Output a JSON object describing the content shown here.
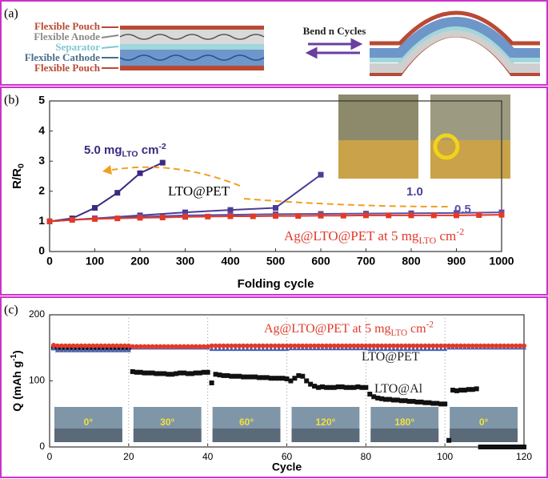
{
  "panels": [
    "(a)",
    "(b)",
    "(c)"
  ],
  "diagram": {
    "layers": [
      "Flexible Pouch",
      "Flexible Anode",
      "Separator",
      "Flexible Cathode",
      "Flexible Pouch"
    ],
    "process": "Bend n Cycles"
  },
  "chart_data": [
    {
      "type": "line",
      "xlabel": "Folding cycle",
      "ylabel": [
        {
          "text": "R/R"
        },
        {
          "text": "0",
          "sub": true
        }
      ],
      "xlim": [
        0,
        1000
      ],
      "ylim": [
        0,
        5
      ],
      "xticks": [
        0,
        100,
        200,
        300,
        400,
        500,
        600,
        700,
        800,
        900,
        1000
      ],
      "yticks": [
        0,
        1,
        2,
        3,
        4,
        5
      ],
      "annotations": [
        "LTO@PET"
      ],
      "series": [
        {
          "label": [
            {
              "text": "5.0 mg"
            },
            {
              "text": "LTO",
              "sub": true
            },
            {
              "text": " cm"
            },
            {
              "text": "-2",
              "sup": true
            }
          ],
          "color": "#3b2a80",
          "marker": "square",
          "x": [
            0,
            50,
            100,
            150,
            200,
            250
          ],
          "values": [
            1.0,
            1.1,
            1.45,
            1.95,
            2.6,
            2.95
          ]
        },
        {
          "label": [
            {
              "text": "1.0"
            }
          ],
          "color": "#4b3c96",
          "marker": "square",
          "x": [
            0,
            100,
            200,
            300,
            400,
            500,
            600
          ],
          "values": [
            1.0,
            1.1,
            1.2,
            1.3,
            1.38,
            1.45,
            2.55
          ]
        },
        {
          "label": [
            {
              "text": "0.5"
            }
          ],
          "color": "#5a4fa8",
          "marker": "square",
          "x": [
            0,
            100,
            200,
            300,
            400,
            500,
            600,
            700,
            800,
            900,
            1000
          ],
          "values": [
            1.0,
            1.1,
            1.15,
            1.2,
            1.22,
            1.24,
            1.25,
            1.26,
            1.27,
            1.28,
            1.3
          ]
        },
        {
          "label": [
            {
              "text": "Ag@LTO@PET at 5 mg"
            },
            {
              "text": "LTO",
              "sub": true
            },
            {
              "text": " cm"
            },
            {
              "text": "-2",
              "sup": true
            }
          ],
          "color": "#e03a2a",
          "marker": "square",
          "x": [
            0,
            50,
            100,
            150,
            200,
            250,
            300,
            350,
            400,
            450,
            500,
            550,
            600,
            650,
            700,
            750,
            800,
            850,
            900,
            950,
            1000
          ],
          "values": [
            1.0,
            1.05,
            1.08,
            1.1,
            1.12,
            1.13,
            1.15,
            1.16,
            1.17,
            1.17,
            1.18,
            1.18,
            1.19,
            1.19,
            1.2,
            1.2,
            1.2,
            1.2,
            1.2,
            1.21,
            1.22
          ]
        }
      ]
    },
    {
      "type": "scatter",
      "xlabel": "Cycle",
      "ylabel": [
        {
          "text": "Q (mAh g"
        },
        {
          "text": "-1",
          "sup": true
        },
        {
          "text": ")"
        }
      ],
      "xlim": [
        0,
        120
      ],
      "ylim": [
        0,
        200
      ],
      "xticks": [
        0,
        20,
        40,
        60,
        80,
        100,
        120
      ],
      "yticks": [
        0,
        100,
        200
      ],
      "insets": [
        "0°",
        "30°",
        "60°",
        "120°",
        "180°",
        "0°"
      ],
      "x": [
        1,
        2,
        3,
        4,
        5,
        6,
        7,
        8,
        9,
        10,
        11,
        12,
        13,
        14,
        15,
        16,
        17,
        18,
        19,
        20,
        21,
        22,
        23,
        24,
        25,
        26,
        27,
        28,
        29,
        30,
        31,
        32,
        33,
        34,
        35,
        36,
        37,
        38,
        39,
        40,
        41,
        42,
        43,
        44,
        45,
        46,
        47,
        48,
        49,
        50,
        51,
        52,
        53,
        54,
        55,
        56,
        57,
        58,
        59,
        60,
        61,
        62,
        63,
        64,
        65,
        66,
        67,
        68,
        69,
        70,
        71,
        72,
        73,
        74,
        75,
        76,
        77,
        78,
        79,
        80,
        81,
        82,
        83,
        84,
        85,
        86,
        87,
        88,
        89,
        90,
        91,
        92,
        93,
        94,
        95,
        96,
        97,
        98,
        99,
        100,
        101,
        102,
        103,
        104,
        105,
        106,
        107,
        108,
        109,
        110,
        111,
        112,
        113,
        114,
        115,
        116,
        117,
        118,
        119,
        120
      ],
      "series": [
        {
          "label": [
            {
              "text": "LTO@Al"
            }
          ],
          "color": "#111111",
          "marker": "square",
          "values": [
            150,
            150,
            150,
            150,
            150,
            150,
            150,
            150,
            150,
            150,
            150,
            150,
            150,
            150,
            150,
            150,
            150,
            150,
            150,
            150,
            114,
            113,
            113,
            112,
            112,
            112,
            111,
            111,
            111,
            110,
            110,
            111,
            112,
            112,
            111,
            111,
            112,
            112,
            113,
            113,
            97,
            110,
            109,
            108,
            108,
            107,
            107,
            107,
            106,
            106,
            106,
            106,
            105,
            105,
            105,
            104,
            104,
            104,
            104,
            103,
            100,
            104,
            108,
            107,
            100,
            95,
            92,
            90,
            91,
            90,
            90,
            90,
            91,
            91,
            90,
            90,
            90,
            91,
            90,
            90,
            80,
            76,
            74,
            73,
            72,
            72,
            71,
            71,
            70,
            70,
            69,
            69,
            68,
            68,
            67,
            67,
            66,
            66,
            65,
            65,
            10,
            86,
            85,
            86,
            86,
            87,
            87,
            88,
            0,
            0,
            0,
            0,
            0,
            0,
            0,
            0,
            0,
            0,
            0,
            0
          ]
        },
        {
          "label": [
            {
              "text": "LTO@PET"
            }
          ],
          "color": "#4a5fb0",
          "marker": "triangle",
          "values": [
            150,
            147,
            147,
            147,
            147,
            147,
            147,
            147,
            147,
            147,
            147,
            147,
            147,
            147,
            147,
            147,
            147,
            147,
            147,
            147,
            151,
            151,
            151,
            151,
            151,
            151,
            151,
            151,
            151,
            151,
            151,
            151,
            151,
            151,
            151,
            151,
            151,
            151,
            151,
            151,
            149,
            149,
            149,
            149,
            149,
            149,
            149,
            149,
            149,
            149,
            149,
            149,
            149,
            149,
            149,
            149,
            149,
            149,
            149,
            149,
            150,
            150,
            150,
            150,
            150,
            150,
            150,
            150,
            150,
            150,
            150,
            150,
            150,
            150,
            150,
            150,
            150,
            150,
            150,
            150,
            149,
            149,
            149,
            149,
            149,
            149,
            149,
            149,
            149,
            149,
            149,
            149,
            149,
            149,
            149,
            149,
            149,
            149,
            149,
            149,
            151,
            151,
            151,
            151,
            151,
            151,
            151,
            151,
            151,
            151,
            151,
            151,
            151,
            151,
            151,
            151,
            151,
            151,
            151,
            151
          ]
        },
        {
          "label": [
            {
              "text": "Ag@LTO@PET at 5 mg"
            },
            {
              "text": "LTO",
              "sub": true
            },
            {
              "text": " cm"
            },
            {
              "text": "-2",
              "sup": true
            }
          ],
          "color": "#e03a2a",
          "marker": "circle",
          "values": [
            154,
            153,
            153,
            153,
            153,
            153,
            153,
            153,
            153,
            153,
            153,
            153,
            153,
            153,
            153,
            153,
            153,
            153,
            153,
            153,
            152,
            152,
            152,
            152,
            152,
            152,
            152,
            152,
            152,
            152,
            152,
            152,
            152,
            152,
            152,
            152,
            152,
            152,
            152,
            152,
            153,
            153,
            153,
            153,
            153,
            153,
            153,
            153,
            153,
            153,
            153,
            153,
            153,
            153,
            153,
            153,
            153,
            153,
            153,
            153,
            153,
            153,
            153,
            153,
            153,
            153,
            153,
            153,
            153,
            153,
            153,
            153,
            153,
            153,
            153,
            153,
            153,
            153,
            153,
            153,
            153,
            153,
            153,
            153,
            153,
            153,
            153,
            153,
            153,
            153,
            153,
            153,
            153,
            153,
            153,
            153,
            153,
            153,
            153,
            153,
            153,
            153,
            153,
            153,
            153,
            153,
            153,
            153,
            153,
            153,
            153,
            153,
            153,
            153,
            153,
            153,
            153,
            153,
            153,
            153
          ]
        }
      ]
    }
  ]
}
